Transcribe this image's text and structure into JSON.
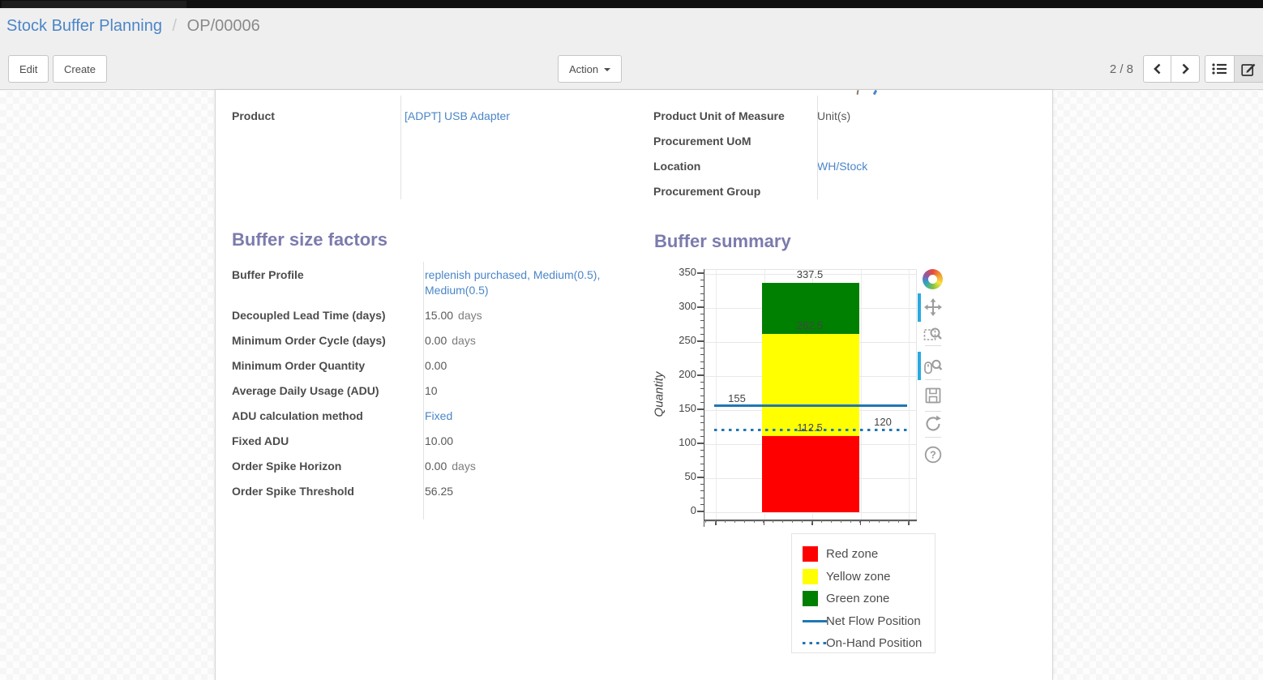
{
  "breadcrumb": {
    "root": "Stock Buffer Planning",
    "separator": "/",
    "current": "OP/00006"
  },
  "toolbar": {
    "edit_label": "Edit",
    "create_label": "Create",
    "action_label": "Action",
    "pager_value": "2 / 8"
  },
  "form": {
    "product_group": {
      "fields": [
        {
          "label": "Product",
          "value": "[ADPT] USB Adapter",
          "link": true
        }
      ]
    },
    "info_group": {
      "fields": [
        {
          "label": "Product Unit of Measure",
          "value": "Unit(s)",
          "link": false
        },
        {
          "label": "Procurement UoM",
          "value": "",
          "link": false
        },
        {
          "label": "Location",
          "value": "WH/Stock",
          "link": true
        },
        {
          "label": "Procurement Group",
          "value": "",
          "link": false
        }
      ]
    },
    "sections": [
      {
        "title": "Buffer size factors"
      },
      {
        "title": "Buffer summary"
      }
    ],
    "buffer_size_factors": {
      "fields": [
        {
          "label": "Buffer Profile",
          "value": "replenish purchased, Medium(0.5), Medium(0.5)",
          "link": true
        },
        {
          "label": "Decoupled Lead Time (days)",
          "value": "15.00",
          "unit": "days"
        },
        {
          "label": "Minimum Order Cycle (days)",
          "value": "0.00",
          "unit": "days"
        },
        {
          "label": "Minimum Order Quantity",
          "value": "0.00"
        },
        {
          "label": "Average Daily Usage (ADU)",
          "value": "10"
        },
        {
          "label": "ADU calculation method",
          "value": "Fixed",
          "link": true
        },
        {
          "label": "Fixed ADU",
          "value": "10.00"
        },
        {
          "label": "Order Spike Horizon",
          "value": "0.00",
          "unit": "days"
        },
        {
          "label": "Order Spike Threshold",
          "value": "56.25"
        }
      ]
    }
  },
  "chart_data": {
    "type": "bar",
    "title": "",
    "xlabel": "",
    "ylabel": "Quantity",
    "ylim": [
      0,
      350
    ],
    "yticks": [
      0,
      50,
      100,
      150,
      200,
      250,
      300,
      350
    ],
    "grid": true,
    "zones": [
      {
        "name": "Red zone",
        "color": "#ff0000",
        "from": 0,
        "to": 112.5
      },
      {
        "name": "Yellow zone",
        "color": "#ffff00",
        "from": 112.5,
        "to": 262.5
      },
      {
        "name": "Green zone",
        "color": "#008000",
        "from": 262.5,
        "to": 337.5
      }
    ],
    "lines": [
      {
        "name": "Net Flow Position",
        "value": 155,
        "style": "solid",
        "color": "#1f77b4"
      },
      {
        "name": "On-Hand Position",
        "value": 120,
        "style": "dotted",
        "color": "#1f77b4"
      }
    ],
    "annotations": [
      {
        "text": "337.5",
        "anchor_value": 337.5,
        "position": "above-bar"
      },
      {
        "text": "262.5",
        "anchor_value": 262.5,
        "position": "on-bar"
      },
      {
        "text": "112.5",
        "anchor_value": 112.5,
        "position": "on-bar"
      },
      {
        "text": "155",
        "anchor_value": 155,
        "position": "line-left"
      },
      {
        "text": "120",
        "anchor_value": 120,
        "position": "line-right"
      }
    ],
    "legend_position": "below-right"
  },
  "chart_toolbar": {
    "icons": [
      {
        "name": "bokeh-logo",
        "active": false
      },
      {
        "name": "pan-tool-icon",
        "active": true
      },
      {
        "name": "box-zoom-icon",
        "active": false
      },
      {
        "name": "wheel-zoom-icon",
        "active": true
      },
      {
        "name": "save-icon",
        "active": false
      },
      {
        "name": "reset-icon",
        "active": false
      },
      {
        "name": "help-icon",
        "active": false
      }
    ]
  },
  "legend": {
    "items": [
      {
        "label": "Red zone",
        "swatch": "square",
        "color": "#ff0000"
      },
      {
        "label": "Yellow zone",
        "swatch": "square",
        "color": "#ffff00"
      },
      {
        "label": "Green zone",
        "swatch": "square",
        "color": "#008000"
      },
      {
        "label": "Net Flow Position",
        "swatch": "line",
        "color": "#1f77b4"
      },
      {
        "label": "On-Hand Position",
        "swatch": "dotted-line",
        "color": "#1f77b4"
      }
    ]
  },
  "colors": {
    "link_blue": "#4a86c8",
    "section_title": "#7c7bad",
    "net_flow_blue": "#1f77b4",
    "active_tool_indicator": "#29aae2"
  }
}
